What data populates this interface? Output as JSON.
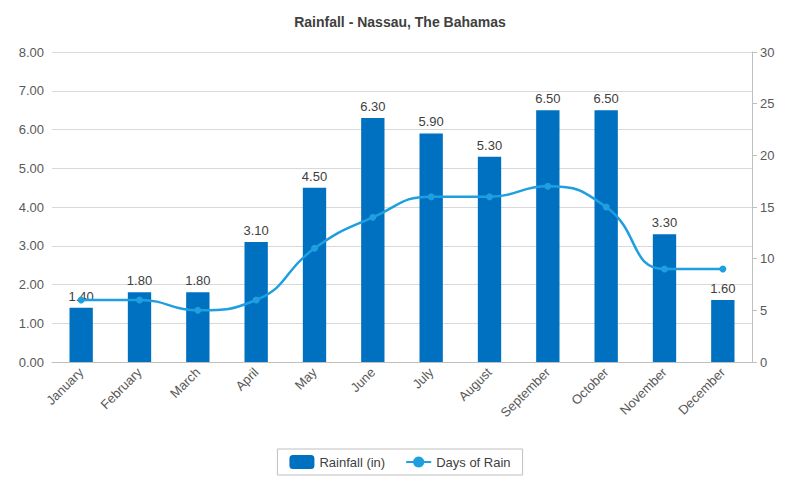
{
  "chart_data": {
    "type": "bar",
    "title": "Rainfall - Nassau, The Bahamas",
    "categories": [
      "January",
      "February",
      "March",
      "April",
      "May",
      "June",
      "July",
      "August",
      "September",
      "October",
      "November",
      "December"
    ],
    "series": [
      {
        "name": "Rainfall (in)",
        "type": "bar",
        "color": "#0070c0",
        "values": [
          1.4,
          1.8,
          1.8,
          3.1,
          4.5,
          6.3,
          5.9,
          5.3,
          6.5,
          6.5,
          3.3,
          1.6
        ],
        "value_labels": [
          "1.40",
          "1.80",
          "1.80",
          "3.10",
          "4.50",
          "6.30",
          "5.90",
          "5.30",
          "6.50",
          "6.50",
          "3.30",
          "1.60"
        ],
        "data_labels": true
      },
      {
        "name": "Days of Rain",
        "type": "line",
        "axis": "y2",
        "color": "#1f9fe0",
        "marker": "circle",
        "values": [
          6,
          6,
          5,
          6,
          11,
          14,
          16,
          16,
          17,
          15,
          9,
          9
        ]
      }
    ],
    "ylim": [
      0,
      8
    ],
    "yticks": [
      {
        "value": 0,
        "label": "0.00"
      },
      {
        "value": 1,
        "label": "1.00"
      },
      {
        "value": 2,
        "label": "2.00"
      },
      {
        "value": 3,
        "label": "3.00"
      },
      {
        "value": 4,
        "label": "4.00"
      },
      {
        "value": 5,
        "label": "5.00"
      },
      {
        "value": 6,
        "label": "6.00"
      },
      {
        "value": 7,
        "label": "7.00"
      },
      {
        "value": 8,
        "label": "8.00"
      }
    ],
    "y2lim": [
      0,
      30
    ],
    "y2ticks": [
      0,
      5,
      10,
      15,
      20,
      25,
      30
    ],
    "grid": true,
    "legend": "bottom"
  }
}
